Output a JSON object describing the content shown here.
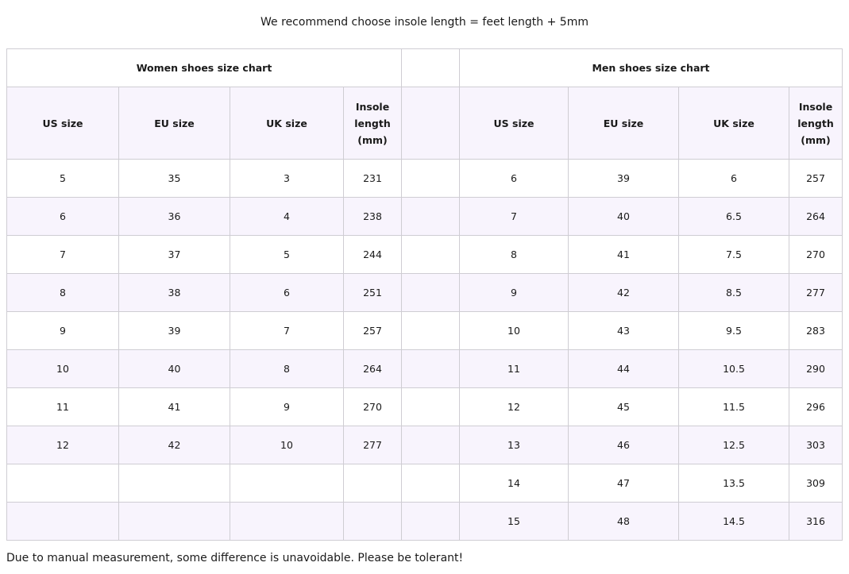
{
  "recommendation": "We recommend choose insole length = feet length + 5mm",
  "women": {
    "title": "Women shoes size chart",
    "headers": [
      "US size",
      "EU size",
      "UK size",
      "Insole length (mm)"
    ],
    "rows": [
      [
        "5",
        "35",
        "3",
        "231"
      ],
      [
        "6",
        "36",
        "4",
        "238"
      ],
      [
        "7",
        "37",
        "5",
        "244"
      ],
      [
        "8",
        "38",
        "6",
        "251"
      ],
      [
        "9",
        "39",
        "7",
        "257"
      ],
      [
        "10",
        "40",
        "8",
        "264"
      ],
      [
        "11",
        "41",
        "9",
        "270"
      ],
      [
        "12",
        "42",
        "10",
        "277"
      ],
      [
        "",
        "",
        "",
        ""
      ],
      [
        "",
        "",
        "",
        ""
      ]
    ]
  },
  "men": {
    "title": "Men shoes size chart",
    "headers": [
      "US size",
      "EU size",
      "UK size",
      "Insole length (mm)"
    ],
    "rows": [
      [
        "6",
        "39",
        "6",
        "257"
      ],
      [
        "7",
        "40",
        "6.5",
        "264"
      ],
      [
        "8",
        "41",
        "7.5",
        "270"
      ],
      [
        "9",
        "42",
        "8.5",
        "277"
      ],
      [
        "10",
        "43",
        "9.5",
        "283"
      ],
      [
        "11",
        "44",
        "10.5",
        "290"
      ],
      [
        "12",
        "45",
        "11.5",
        "296"
      ],
      [
        "13",
        "46",
        "12.5",
        "303"
      ],
      [
        "14",
        "47",
        "13.5",
        "309"
      ],
      [
        "15",
        "48",
        "14.5",
        "316"
      ]
    ]
  },
  "note": "Due to manual measurement, some difference is unavoidable. Please be tolerant!",
  "colors": {
    "alt_row": "#f8f4fd",
    "border": "#cfcdd3"
  }
}
